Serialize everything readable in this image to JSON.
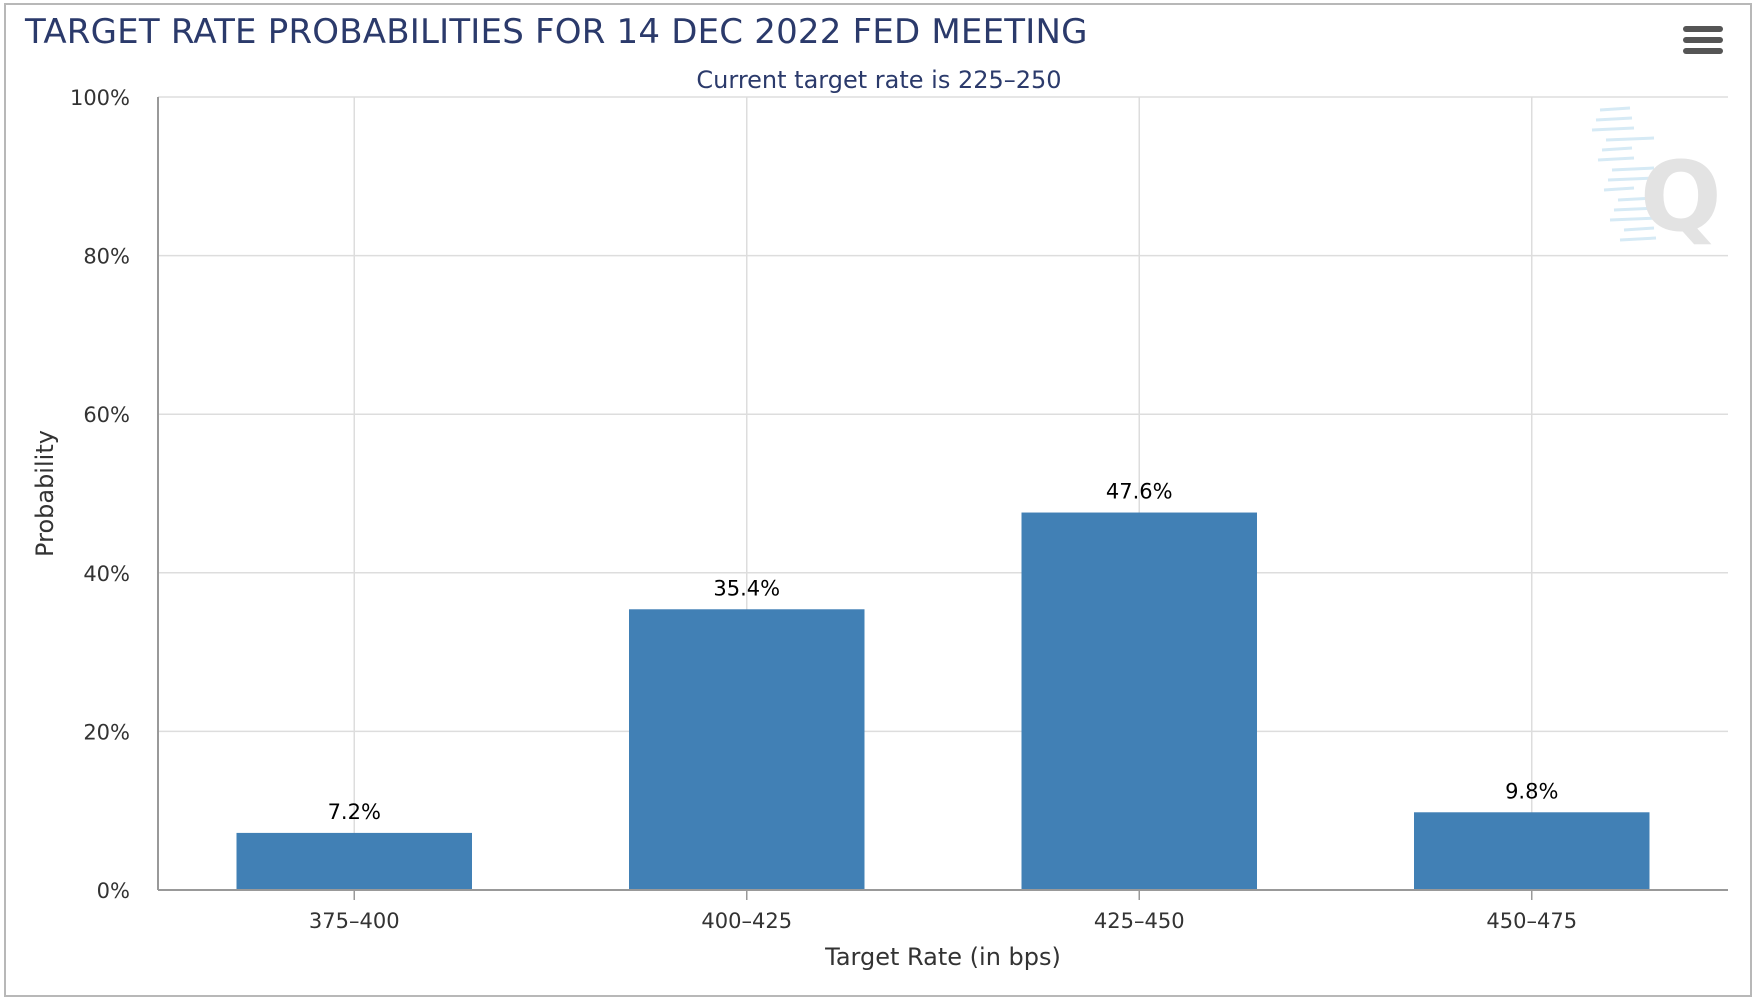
{
  "chart_data": {
    "type": "bar",
    "title": "TARGET RATE PROBABILITIES FOR 14 DEC 2022 FED MEETING",
    "subtitle": "Current target rate is 225–250",
    "xlabel": "Target Rate (in bps)",
    "ylabel": "Probability",
    "categories": [
      "375–400",
      "400–425",
      "425–450",
      "450–475"
    ],
    "values": [
      7.2,
      35.4,
      47.6,
      9.8
    ],
    "data_labels": [
      "7.2%",
      "35.4%",
      "47.6%",
      "9.8%"
    ],
    "ylim": [
      0,
      100
    ],
    "yticks": [
      0,
      20,
      40,
      60,
      80,
      100
    ],
    "ytick_labels": [
      "0%",
      "20%",
      "40%",
      "60%",
      "80%",
      "100%"
    ],
    "grid": true,
    "legend": "none",
    "bar_color": "#4180b5",
    "watermark": "Q"
  },
  "colors": {
    "title": "#2b3a6b",
    "grid": "#dddddd",
    "axis": "#999999",
    "menu": "#555555"
  },
  "toolbar": {
    "menu_icon": "hamburger-menu-icon"
  }
}
